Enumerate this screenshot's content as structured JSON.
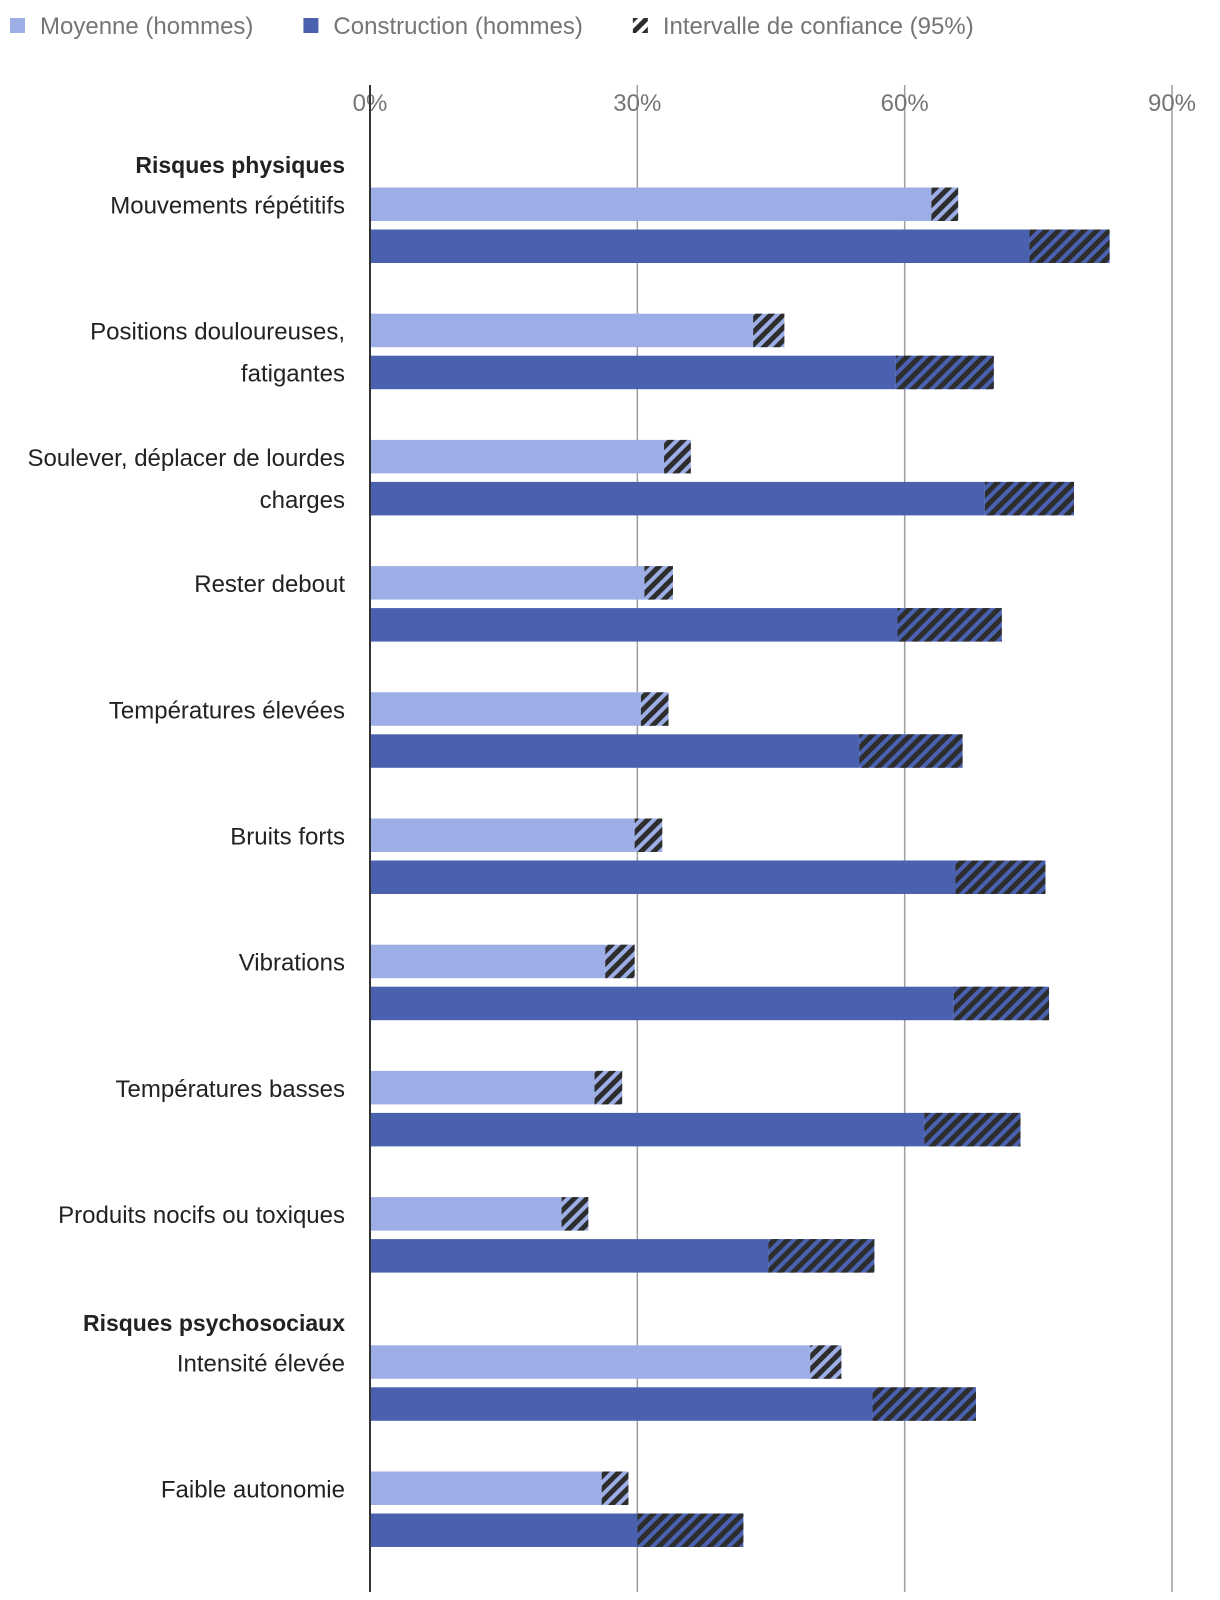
{
  "chart_data": {
    "type": "bar",
    "orientation": "horizontal",
    "title": "",
    "xlabel": "",
    "ylabel": "",
    "xlim": [
      0,
      90
    ],
    "x_ticks": [
      {
        "value": 0,
        "label": "0%"
      },
      {
        "value": 30,
        "label": "30%"
      },
      {
        "value": 60,
        "label": "60%"
      },
      {
        "value": 90,
        "label": "90%"
      }
    ],
    "grid": true,
    "legend": {
      "position": "top-left",
      "entries": [
        {
          "key": "avg",
          "label": "Moyenne (hommes)",
          "color": "#9daee6"
        },
        {
          "key": "con",
          "label": "Construction (hommes)",
          "color": "#4a61b0"
        },
        {
          "key": "ci",
          "label": "Intervalle de confiance (95%)",
          "color": "#333333",
          "pattern": "hatch"
        }
      ]
    },
    "groups": [
      {
        "name": "Risques physiques",
        "categories": [
          {
            "label": [
              "Mouvements répétitifs"
            ],
            "avg": {
              "value": 64.5,
              "ci": [
                63.0,
                66.0
              ]
            },
            "con": {
              "value": 78.5,
              "ci": [
                74.0,
                83.0
              ]
            }
          },
          {
            "label": [
              "Positions douloureuses,",
              "fatigantes"
            ],
            "avg": {
              "value": 44.7,
              "ci": [
                43.0,
                46.5
              ]
            },
            "con": {
              "value": 64.5,
              "ci": [
                59.0,
                70.0
              ]
            }
          },
          {
            "label": [
              "Soulever, déplacer de lourdes",
              "charges"
            ],
            "avg": {
              "value": 34.5,
              "ci": [
                33.0,
                36.0
              ]
            },
            "con": {
              "value": 74.0,
              "ci": [
                69.0,
                79.0
              ]
            }
          },
          {
            "label": [
              "Rester debout"
            ],
            "avg": {
              "value": 32.4,
              "ci": [
                30.8,
                34.0
              ]
            },
            "con": {
              "value": 65.0,
              "ci": [
                59.2,
                70.9
              ]
            }
          },
          {
            "label": [
              "Températures élevées"
            ],
            "avg": {
              "value": 31.9,
              "ci": [
                30.4,
                33.5
              ]
            },
            "con": {
              "value": 60.5,
              "ci": [
                54.9,
                66.5
              ]
            }
          },
          {
            "label": [
              "Bruits forts"
            ],
            "avg": {
              "value": 31.2,
              "ci": [
                29.7,
                32.8
              ]
            },
            "con": {
              "value": 71.0,
              "ci": [
                65.7,
                75.8
              ]
            }
          },
          {
            "label": [
              "Vibrations"
            ],
            "avg": {
              "value": 28.1,
              "ci": [
                26.4,
                29.7
              ]
            },
            "con": {
              "value": 71.0,
              "ci": [
                65.5,
                76.2
              ]
            }
          },
          {
            "label": [
              "Températures basses"
            ],
            "avg": {
              "value": 26.8,
              "ci": [
                25.2,
                28.3
              ]
            },
            "con": {
              "value": 67.8,
              "ci": [
                62.2,
                73.0
              ]
            }
          },
          {
            "label": [
              "Produits nocifs ou toxiques"
            ],
            "avg": {
              "value": 23.0,
              "ci": [
                21.5,
                24.5
              ]
            },
            "con": {
              "value": 50.6,
              "ci": [
                44.7,
                56.6
              ]
            }
          }
        ]
      },
      {
        "name": "Risques psychosociaux",
        "categories": [
          {
            "label": [
              "Intensité élevée"
            ],
            "avg": {
              "value": 51.1,
              "ci": [
                49.4,
                52.9
              ]
            },
            "con": {
              "value": 62.2,
              "ci": [
                56.4,
                68.0
              ]
            }
          },
          {
            "label": [
              "Faible autonomie"
            ],
            "avg": {
              "value": 27.5,
              "ci": [
                26.0,
                29.0
              ]
            },
            "con": {
              "value": 35.9,
              "ci": [
                30.0,
                41.9
              ]
            }
          }
        ]
      }
    ]
  }
}
